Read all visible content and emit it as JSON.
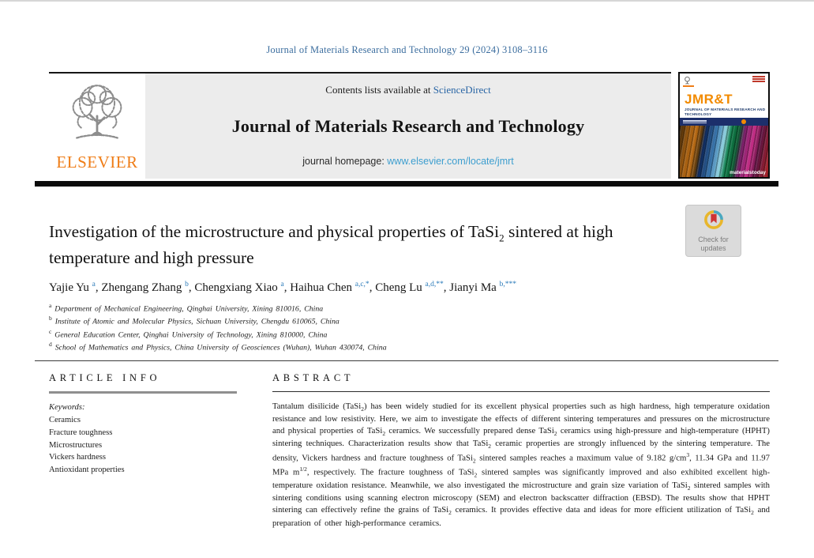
{
  "header": {
    "citation": "Journal of Materials Research and Technology 29 (2024) 3108–3116"
  },
  "banner": {
    "contents_prefix": "Contents lists available at ",
    "sciencedirect_link": "ScienceDirect",
    "journal_name": "Journal of Materials Research and Technology",
    "homepage_prefix": "journal homepage: ",
    "homepage_url": "www.elsevier.com/locate/jmrt",
    "elsevier_wordmark": "ELSEVIER"
  },
  "cover": {
    "masthead": "JMR&T",
    "masthead_subtitle": "JOURNAL OF MATERIALS RESEARCH AND TECHNOLOGY",
    "footer_brand": "materialstoday"
  },
  "article": {
    "title_html": "Investigation of the microstructure and physical properties of TaSi<sub>2</sub> sintered at high temperature and high pressure",
    "authors_html": "Yajie Yu <sup>a</sup>, Zhengang Zhang <sup>b</sup>, Chengxiang Xiao <sup>a</sup>, Haihua Chen <sup>a,c,*</sup>, Cheng Lu <sup>a,d,**</sup>, Jianyi Ma <sup>b,***</sup>",
    "affiliations_html": [
      "<sup>a</sup> Department of Mechanical Engineering, Qinghai University, Xining 810016, China",
      "<sup>b</sup> Institute of Atomic and Molecular Physics, Sichuan University, Chengdu 610065, China",
      "<sup>c</sup> General Education Center, Qinghai University of Technology, Xining 810000, China",
      "<sup>d</sup> School of Mathematics and Physics, China University of Geosciences (Wuhan), Wuhan 430074, China"
    ]
  },
  "crossmark": {
    "line1": "Check for",
    "line2": "updates"
  },
  "article_info": {
    "heading": "ARTICLE INFO",
    "keywords_label": "Keywords:",
    "keywords": [
      "Ceramics",
      "Fracture toughness",
      "Microstructures",
      "Vickers hardness",
      "Antioxidant properties"
    ]
  },
  "abstract": {
    "heading": "ABSTRACT",
    "body_html": "Tantalum disilicide (TaSi<sub>2</sub>) has been widely studied for its excellent physical properties such as high hardness, high temperature oxidation resistance and low resistivity. Here, we aim to investigate the effects of different sintering temperatures and pressures on the microstructure and physical properties of TaSi<sub>2</sub> ceramics. We successfully prepared dense TaSi<sub>2</sub> ceramics using high-pressure and high-temperature (HPHT) sintering techniques. Characterization results show that TaSi<sub>2</sub> ceramic properties are strongly influenced by the sintering temperature. The density, Vickers hardness and fracture toughness of TaSi<sub>2</sub> sintered samples reaches a maximum value of 9.182 g/cm<sup>3</sup>, 11.34 GPa and 11.97 MPa m<sup>1/2</sup>, respectively. The fracture toughness of TaSi<sub>2</sub> sintered samples was significantly improved and also exhibited excellent high-temperature oxidation resistance. Meanwhile, we also investigated the microstructure and grain size variation of TaSi<sub>2</sub> sintered samples with sintering conditions using scanning electron microscopy (SEM) and electron backscatter diffraction (EBSD). The results show that HPHT sintering can effectively refine the grains of TaSi<sub>2</sub> ceramics. It provides effective data and ideas for more efficient utilization of TaSi<sub>2</sub> and preparation of other high-performance ceramics."
  },
  "colors": {
    "citation_blue": "#3c6e9f",
    "link_blue": "#2a66a5",
    "url_blue": "#3d9ecf",
    "elsevier_orange": "#ef7d17",
    "banner_gray": "#ececec",
    "divider_black": "#0b0b0b"
  }
}
